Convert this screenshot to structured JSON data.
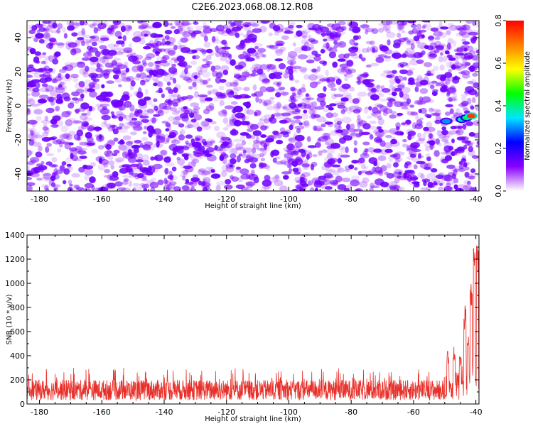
{
  "title": "C2E6.2023.068.08.12.R08",
  "chart_data": [
    {
      "type": "heatmap",
      "xlabel": "Height of straight line (km)",
      "ylabel": "Frequency (Hz)",
      "xlim": [
        -184,
        -39
      ],
      "ylim": [
        -50,
        50
      ],
      "xticks": [
        -180,
        -160,
        -140,
        -120,
        -100,
        -80,
        -60,
        -40
      ],
      "xtick_labels": [
        "-180",
        "-160",
        "-140",
        "-120",
        "-100",
        "-80",
        "-60",
        "-40"
      ],
      "yticks": [
        -40,
        -20,
        0,
        20,
        40
      ],
      "ytick_labels": [
        "-40",
        "-20",
        "0",
        "20",
        "40"
      ],
      "colorbar": {
        "label": "Normalized spectral amplitude",
        "range": [
          0,
          0.8
        ],
        "ticks": [
          0,
          0.2,
          0.4,
          0.6,
          0.8
        ],
        "tick_labels": [
          "0.0",
          "0.2",
          "0.4",
          "0.6",
          "0.8"
        ],
        "colors": [
          "#ffffff",
          "#8a00ff",
          "#0000ff",
          "#00e5ff",
          "#00ff00",
          "#ffff00",
          "#ff7f00",
          "#ff0000"
        ]
      },
      "background_noise_amplitude_range": [
        0.02,
        0.12
      ],
      "signal_features": [
        {
          "x": -49.5,
          "y": -9,
          "amplitude": 0.3
        },
        {
          "x": -44.5,
          "y": -8,
          "amplitude": 0.38
        },
        {
          "x": -43,
          "y": -7,
          "amplitude": 0.42
        },
        {
          "x": -41.5,
          "y": -6,
          "amplitude": 0.75
        }
      ]
    },
    {
      "type": "line",
      "xlabel": "Height of straight line (km)",
      "ylabel": "SNR (10 * v/v)",
      "xlim": [
        -184,
        -39
      ],
      "ylim": [
        0,
        1400
      ],
      "xticks": [
        -180,
        -160,
        -140,
        -120,
        -100,
        -80,
        -60,
        -40
      ],
      "xtick_labels": [
        "-180",
        "-160",
        "-140",
        "-120",
        "-100",
        "-80",
        "-60",
        "-40"
      ],
      "yticks": [
        0,
        200,
        400,
        600,
        800,
        1000,
        1200,
        1400
      ],
      "ytick_labels": [
        "0",
        "200",
        "400",
        "600",
        "800",
        "1000",
        "1200",
        "1400"
      ],
      "series": [
        {
          "name": "SNR",
          "color": "#e8302a",
          "baseline_range": [
            30,
            200
          ],
          "typical_peak": 300,
          "peaks": [
            {
              "x": -49,
              "y": 440
            },
            {
              "x": -47,
              "y": 480
            },
            {
              "x": -45,
              "y": 420
            },
            {
              "x": -43.5,
              "y": 820
            },
            {
              "x": -42.5,
              "y": 600
            },
            {
              "x": -41.5,
              "y": 1000
            },
            {
              "x": -40.5,
              "y": 1300
            },
            {
              "x": -39.5,
              "y": 1380
            }
          ]
        }
      ]
    }
  ]
}
